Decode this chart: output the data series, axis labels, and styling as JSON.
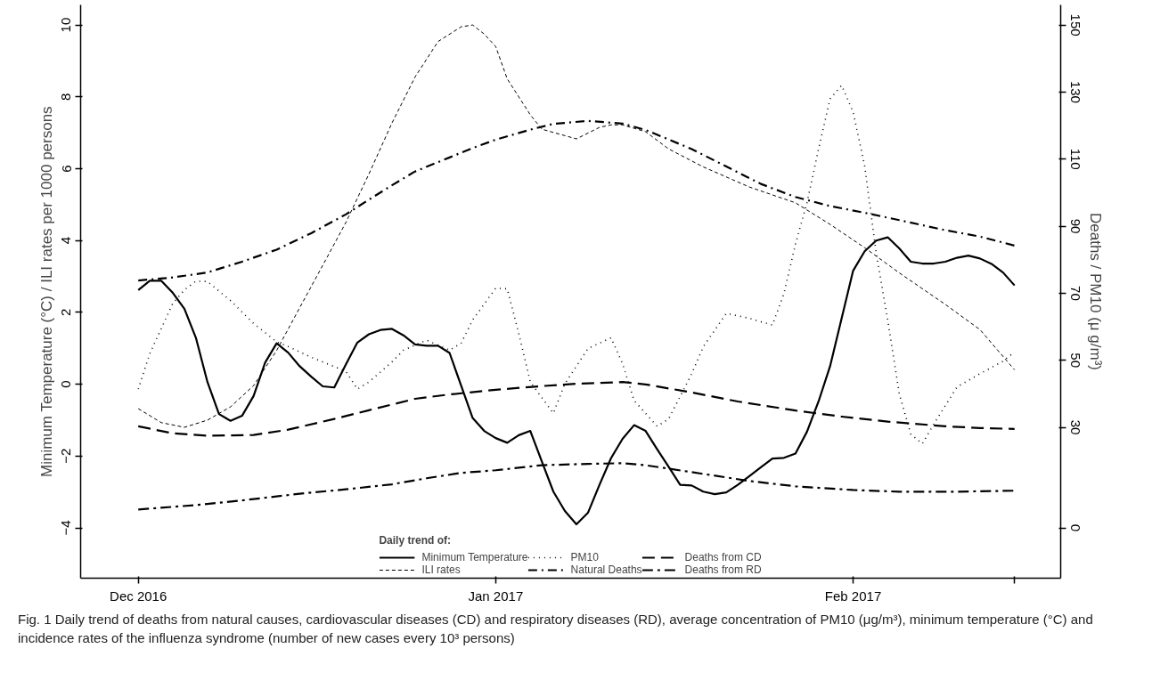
{
  "chart_data": {
    "type": "line",
    "ylabel": "Minimum Temperature (°C) / ILI rates per 1000 persons",
    "y2label": "Deaths / PM10 (μ g/m³)",
    "legend_title": "Daily trend of:",
    "legend": "bottom",
    "grid": false,
    "marker": "none",
    "xlim": [
      "2016-11-26",
      "2017-02-19"
    ],
    "xticks": [
      {
        "value": "2016-12-01",
        "label": "Dec 2016"
      },
      {
        "value": "2017-01-01",
        "label": "Jan 2017"
      },
      {
        "value": "2017-02-01",
        "label": "Feb 2017"
      },
      {
        "value": "2017-02-15",
        "label": null
      }
    ],
    "ylim": [
      -5.4,
      10.56
    ],
    "yticks": [
      -4,
      -2,
      0,
      2,
      4,
      6,
      8,
      10
    ],
    "y2lim": [
      -15,
      156
    ],
    "y2ticks": [
      0,
      30,
      50,
      70,
      90,
      110,
      130,
      150
    ],
    "series": [
      {
        "name": "Minimum Temperature",
        "color": "#000000",
        "line_style": "solid",
        "axis": "y",
        "x": [
          "2016-12-01",
          "2016-12-02",
          "2016-12-03",
          "2016-12-04",
          "2016-12-05",
          "2016-12-06",
          "2016-12-07",
          "2016-12-08",
          "2016-12-09",
          "2016-12-10",
          "2016-12-11",
          "2016-12-12",
          "2016-12-13",
          "2016-12-14",
          "2016-12-15",
          "2016-12-16",
          "2016-12-17",
          "2016-12-18",
          "2016-12-19",
          "2016-12-20",
          "2016-12-21",
          "2016-12-22",
          "2016-12-23",
          "2016-12-24",
          "2016-12-25",
          "2016-12-26",
          "2016-12-27",
          "2016-12-28",
          "2016-12-29",
          "2016-12-30",
          "2016-12-31",
          "2017-01-01",
          "2017-01-02",
          "2017-01-03",
          "2017-01-04",
          "2017-01-05",
          "2017-01-06",
          "2017-01-07",
          "2017-01-08",
          "2017-01-09",
          "2017-01-10",
          "2017-01-11",
          "2017-01-12",
          "2017-01-13",
          "2017-01-14",
          "2017-01-15",
          "2017-01-16",
          "2017-01-17",
          "2017-01-18",
          "2017-01-19",
          "2017-01-20",
          "2017-01-21",
          "2017-01-22",
          "2017-01-23",
          "2017-01-24",
          "2017-01-25",
          "2017-01-26",
          "2017-01-27",
          "2017-01-28",
          "2017-01-29",
          "2017-01-30",
          "2017-01-31",
          "2017-02-01",
          "2017-02-02",
          "2017-02-03",
          "2017-02-04",
          "2017-02-05",
          "2017-02-06",
          "2017-02-07",
          "2017-02-08",
          "2017-02-09",
          "2017-02-10",
          "2017-02-11",
          "2017-02-12",
          "2017-02-13",
          "2017-02-14",
          "2017-02-15"
        ],
        "values": [
          2.62,
          2.88,
          2.88,
          2.54,
          2.1,
          1.29,
          0.06,
          -0.83,
          -1.02,
          -0.88,
          -0.33,
          0.6,
          1.14,
          0.88,
          0.5,
          0.21,
          -0.06,
          -0.09,
          0.55,
          1.16,
          1.39,
          1.51,
          1.54,
          1.36,
          1.11,
          1.07,
          1.07,
          0.87,
          -0.04,
          -0.94,
          -1.3,
          -1.5,
          -1.63,
          -1.42,
          -1.3,
          -2.15,
          -2.99,
          -3.53,
          -3.9,
          -3.58,
          -2.8,
          -2.06,
          -1.52,
          -1.14,
          -1.3,
          -1.81,
          -2.3,
          -2.8,
          -2.82,
          -2.99,
          -3.06,
          -3.01,
          -2.8,
          -2.56,
          -2.31,
          -2.07,
          -2.05,
          -1.93,
          -1.32,
          -0.48,
          0.5,
          1.83,
          3.16,
          3.7,
          4.0,
          4.09,
          3.78,
          3.41,
          3.36,
          3.36,
          3.41,
          3.52,
          3.58,
          3.5,
          3.35,
          3.11,
          2.75
        ]
      },
      {
        "name": "ILI rates",
        "color": "#000000",
        "line_style": "dashed",
        "axis": "y",
        "x": [
          "2016-12-01",
          "2016-12-03",
          "2016-12-05",
          "2016-12-07",
          "2016-12-09",
          "2016-12-11",
          "2016-12-13",
          "2016-12-15",
          "2016-12-17",
          "2016-12-19",
          "2016-12-21",
          "2016-12-23",
          "2016-12-25",
          "2016-12-27",
          "2016-12-29",
          "2016-12-30",
          "2016-12-31",
          "2017-01-01",
          "2017-01-02",
          "2017-01-04",
          "2017-01-05",
          "2017-01-08",
          "2017-01-10",
          "2017-01-11",
          "2017-01-12",
          "2017-01-14",
          "2017-01-16",
          "2017-01-19",
          "2017-01-23",
          "2017-01-27",
          "2017-01-30",
          "2017-02-02",
          "2017-02-05",
          "2017-02-09",
          "2017-02-12",
          "2017-02-15"
        ],
        "values": [
          -0.68,
          -1.07,
          -1.2,
          -1.0,
          -0.63,
          -0.04,
          0.94,
          2.13,
          3.31,
          4.5,
          5.85,
          7.27,
          8.55,
          9.54,
          9.95,
          10.0,
          9.75,
          9.4,
          8.5,
          7.5,
          7.1,
          6.83,
          7.15,
          7.22,
          7.22,
          7.03,
          6.55,
          6.05,
          5.49,
          5.05,
          4.45,
          3.8,
          3.1,
          2.22,
          1.52,
          0.4
        ]
      },
      {
        "name": "PM10",
        "color": "#000000",
        "line_style": "dotted",
        "axis": "y2",
        "x": [
          "2016-12-01",
          "2016-12-02",
          "2016-12-04",
          "2016-12-05",
          "2016-12-06",
          "2016-12-07",
          "2016-12-09",
          "2016-12-11",
          "2016-12-13",
          "2016-12-14",
          "2016-12-16",
          "2016-12-19",
          "2016-12-20",
          "2016-12-21",
          "2016-12-23",
          "2016-12-24",
          "2016-12-26",
          "2016-12-28",
          "2016-12-29",
          "2016-12-30",
          "2017-01-01",
          "2017-01-02",
          "2017-01-03",
          "2017-01-04",
          "2017-01-06",
          "2017-01-07",
          "2017-01-09",
          "2017-01-11",
          "2017-01-12",
          "2017-01-13",
          "2017-01-15",
          "2017-01-16",
          "2017-01-18",
          "2017-01-19",
          "2017-01-20",
          "2017-01-21",
          "2017-01-23",
          "2017-01-25",
          "2017-01-26",
          "2017-01-27",
          "2017-01-28",
          "2017-01-29",
          "2017-01-30",
          "2017-01-31",
          "2017-02-01",
          "2017-02-02",
          "2017-02-03",
          "2017-02-04",
          "2017-02-05",
          "2017-02-06",
          "2017-02-07",
          "2017-02-08",
          "2017-02-10",
          "2017-02-12",
          "2017-02-14",
          "2017-02-15"
        ],
        "values": [
          41.4,
          52,
          67,
          71,
          73.6,
          73.5,
          67.8,
          61,
          55.5,
          54.1,
          50.9,
          46.7,
          41.4,
          43.5,
          49.5,
          53,
          56,
          53,
          55.1,
          62,
          71.5,
          71.3,
          58,
          43.5,
          34.2,
          43,
          53.5,
          56.7,
          49,
          38,
          30.3,
          32.5,
          46,
          54,
          59,
          64,
          62.5,
          60.5,
          69.9,
          84.7,
          97,
          113,
          128,
          132,
          124,
          108,
          82,
          62,
          40,
          28,
          25.1,
          31,
          42,
          46,
          49.7,
          52.5
        ]
      },
      {
        "name": "Natural Deaths",
        "color": "#000000",
        "line_style": "dashdot",
        "axis": "y2",
        "x": [
          "2016-12-01",
          "2016-12-04",
          "2016-12-07",
          "2016-12-10",
          "2016-12-13",
          "2016-12-16",
          "2016-12-19",
          "2016-12-21",
          "2016-12-23",
          "2016-12-25",
          "2016-12-28",
          "2016-12-30",
          "2017-01-01",
          "2017-01-04",
          "2017-01-06",
          "2017-01-09",
          "2017-01-12",
          "2017-01-14",
          "2017-01-18",
          "2017-01-21",
          "2017-01-24",
          "2017-01-27",
          "2017-01-30",
          "2017-02-02",
          "2017-02-05",
          "2017-02-09",
          "2017-02-12",
          "2017-02-15"
        ],
        "values": [
          73.8,
          74.7,
          76.2,
          79.4,
          83,
          87.9,
          93.5,
          97.9,
          102.2,
          106.3,
          110.5,
          113.3,
          115.8,
          118.8,
          120.5,
          121.4,
          120.6,
          118.7,
          113,
          107.8,
          102.6,
          98.7,
          96,
          94,
          91.8,
          88.8,
          86.9,
          84.2
        ]
      },
      {
        "name": "Deaths from CD",
        "color": "#000000",
        "line_style": "longdash",
        "axis": "y2",
        "x": [
          "2016-12-01",
          "2016-12-04",
          "2016-12-07",
          "2016-12-11",
          "2016-12-14",
          "2016-12-18",
          "2016-12-21",
          "2016-12-25",
          "2016-12-28",
          "2017-01-01",
          "2017-01-05",
          "2017-01-08",
          "2017-01-12",
          "2017-01-14",
          "2017-01-18",
          "2017-01-22",
          "2017-01-27",
          "2017-01-31",
          "2017-02-04",
          "2017-02-09",
          "2017-02-12",
          "2017-02-15"
        ],
        "values": [
          30.3,
          28.2,
          27.5,
          27.7,
          29.3,
          32.5,
          35.1,
          38.5,
          39.8,
          41.2,
          42.3,
          43,
          43.5,
          42.8,
          40.4,
          37.7,
          35,
          33.2,
          31.7,
          30.3,
          29.8,
          29.5
        ]
      },
      {
        "name": "Deaths from RD",
        "color": "#000000",
        "line_style": "longdashdot",
        "axis": "y2",
        "x": [
          "2016-12-01",
          "2016-12-06",
          "2016-12-10",
          "2016-12-15",
          "2016-12-19",
          "2016-12-23",
          "2016-12-26",
          "2016-12-29",
          "2017-01-01",
          "2017-01-05",
          "2017-01-09",
          "2017-01-12",
          "2017-01-14",
          "2017-01-19",
          "2017-01-23",
          "2017-01-27",
          "2017-02-01",
          "2017-02-05",
          "2017-02-10",
          "2017-02-15"
        ],
        "values": [
          5.5,
          6.8,
          8.2,
          10.2,
          11.5,
          13,
          14.8,
          16.4,
          17.2,
          18.7,
          19.1,
          19.3,
          18.7,
          16.1,
          14,
          12.4,
          11.3,
          10.8,
          10.8,
          11.1
        ]
      }
    ],
    "annotations": [
      "Fig. 1 Daily trend of deaths from natural causes, cardiovascular diseases (CD) and respiratory diseases (RD), average concentration of PM10 (μg/m³), minimum temperature (°C) and incidence rates of the influenza syndrome (number of new cases every 10³ persons)"
    ]
  }
}
